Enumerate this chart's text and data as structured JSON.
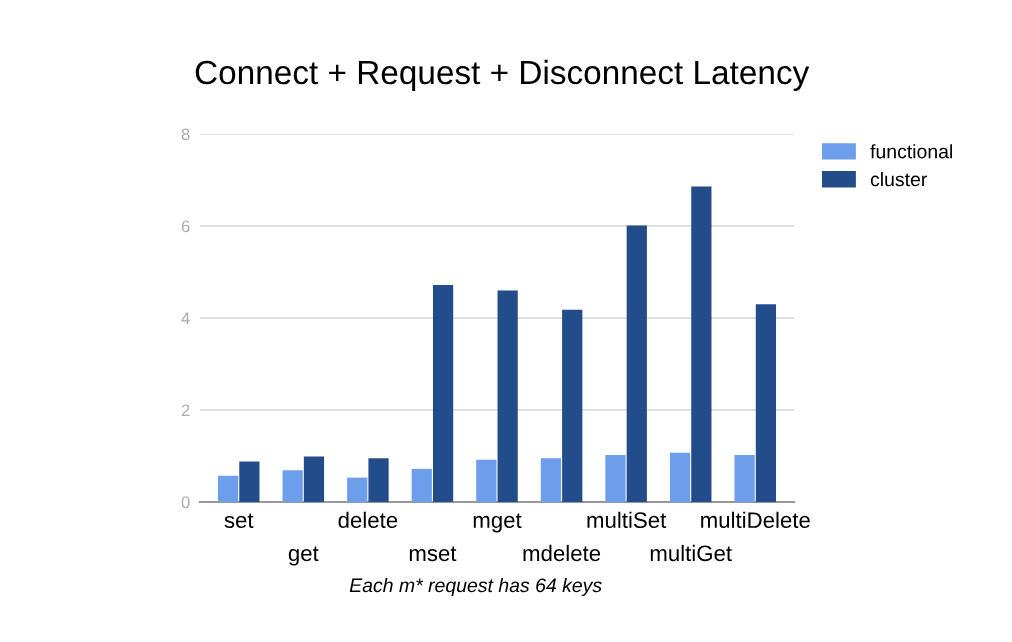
{
  "chart_data": {
    "type": "bar",
    "title": "Connect + Request + Disconnect Latency",
    "categories": [
      "set",
      "get",
      "delete",
      "mset",
      "mget",
      "mdelete",
      "multiSet",
      "multiGet",
      "multiDelete"
    ],
    "series": [
      {
        "name": "functional",
        "color": "#6d9eeb",
        "values": [
          0.57,
          0.69,
          0.53,
          0.72,
          0.92,
          0.95,
          1.02,
          1.07,
          1.02
        ]
      },
      {
        "name": "cluster",
        "color": "#234d8a",
        "values": [
          0.88,
          0.99,
          0.95,
          4.72,
          4.6,
          4.18,
          6.01,
          6.86,
          4.3
        ]
      }
    ],
    "ylim": [
      0,
      8
    ],
    "yticks": [
      0,
      2,
      4,
      6,
      8
    ],
    "grid": "y",
    "legend": "top right",
    "annotations": [
      "Each m* request has 64 keys"
    ]
  }
}
